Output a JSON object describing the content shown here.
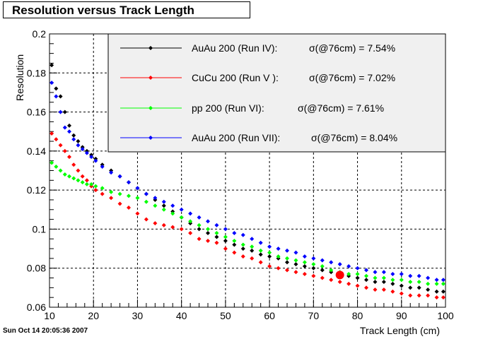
{
  "title": "Resolution versus Track Length",
  "timestamp": "Sun Oct 14 20:05:36 2007",
  "chart_data": {
    "type": "scatter",
    "title": "Resolution versus Track Length",
    "xlabel": "Track Length (cm)",
    "ylabel": "Resolution",
    "xlim": [
      10,
      100
    ],
    "ylim": [
      0.06,
      0.2
    ],
    "xticks": [
      "10",
      "20",
      "30",
      "40",
      "50",
      "60",
      "70",
      "80",
      "90",
      "100"
    ],
    "yticks": [
      "0.06",
      "0.08",
      "0.1",
      "0.12",
      "0.14",
      "0.16",
      "0.18",
      "0.2"
    ],
    "grid": true,
    "legend_position": "top-right",
    "series": [
      {
        "name": "AuAu 200 (Run IV):",
        "sigma_label": "σ(@76cm) =  7.54%",
        "color": "#000000",
        "x": [
          10.5,
          11.5,
          12.5,
          13.5,
          14.5,
          15.5,
          16.5,
          17.5,
          18.5,
          19.5,
          20.5,
          22,
          24,
          26,
          28,
          30,
          32,
          34,
          36,
          38,
          40,
          42,
          44,
          46,
          48,
          50,
          52,
          54,
          56,
          58,
          60,
          62,
          64,
          66,
          68,
          70,
          72,
          74,
          76,
          78,
          80,
          82,
          84,
          86,
          88,
          90,
          92,
          94,
          96,
          98,
          99.5
        ],
        "y": [
          0.184,
          0.172,
          0.168,
          0.16,
          0.153,
          0.148,
          0.145,
          0.142,
          0.14,
          0.138,
          0.136,
          0.133,
          0.13,
          0.127,
          0.124,
          0.121,
          0.118,
          0.115,
          0.112,
          0.109,
          0.106,
          0.103,
          0.1,
          0.098,
          0.096,
          0.094,
          0.092,
          0.09,
          0.089,
          0.087,
          0.086,
          0.085,
          0.083,
          0.082,
          0.081,
          0.08,
          0.079,
          0.078,
          0.077,
          0.076,
          0.075,
          0.074,
          0.073,
          0.073,
          0.072,
          0.071,
          0.07,
          0.07,
          0.069,
          0.068,
          0.068
        ]
      },
      {
        "name": "CuCu 200 (Run V ):",
        "sigma_label": "σ(@76cm) =  7.02%",
        "color": "#ff0000",
        "x": [
          10.5,
          11.5,
          12.5,
          13.5,
          14.5,
          15.5,
          16.5,
          17.5,
          18.5,
          19.5,
          20.5,
          22,
          24,
          26,
          28,
          30,
          32,
          34,
          36,
          38,
          40,
          42,
          44,
          46,
          48,
          50,
          52,
          54,
          56,
          58,
          60,
          62,
          64,
          66,
          68,
          70,
          72,
          74,
          76,
          78,
          80,
          82,
          84,
          86,
          88,
          90,
          92,
          94,
          96,
          98,
          99.5
        ],
        "y": [
          0.149,
          0.146,
          0.143,
          0.14,
          0.137,
          0.133,
          0.13,
          0.127,
          0.125,
          0.122,
          0.12,
          0.118,
          0.116,
          0.113,
          0.111,
          0.108,
          0.105,
          0.103,
          0.102,
          0.101,
          0.1,
          0.098,
          0.095,
          0.094,
          0.093,
          0.09,
          0.088,
          0.086,
          0.085,
          0.083,
          0.081,
          0.08,
          0.079,
          0.078,
          0.077,
          0.076,
          0.075,
          0.074,
          0.073,
          0.072,
          0.071,
          0.07,
          0.069,
          0.069,
          0.068,
          0.067,
          0.066,
          0.066,
          0.066,
          0.065,
          0.065
        ]
      },
      {
        "name": "pp 200   (Run VI):",
        "sigma_label": "σ(@76cm) =  7.61%",
        "color": "#00ff00",
        "x": [
          10.5,
          11.5,
          12.5,
          13.5,
          14.5,
          15.5,
          16.5,
          17.5,
          18.5,
          19.5,
          20.5,
          22,
          24,
          26,
          28,
          30,
          32,
          34,
          36,
          38,
          40,
          42,
          44,
          46,
          48,
          50,
          52,
          54,
          56,
          58,
          60,
          62,
          64,
          66,
          68,
          70,
          72,
          74,
          76,
          78,
          80,
          82,
          84,
          86,
          88,
          90,
          92,
          94,
          96,
          98,
          99.5
        ],
        "y": [
          0.134,
          0.132,
          0.13,
          0.128,
          0.127,
          0.126,
          0.125,
          0.124,
          0.123,
          0.123,
          0.122,
          0.121,
          0.119,
          0.118,
          0.117,
          0.116,
          0.114,
          0.112,
          0.11,
          0.108,
          0.106,
          0.104,
          0.102,
          0.1,
          0.098,
          0.096,
          0.094,
          0.092,
          0.091,
          0.089,
          0.088,
          0.086,
          0.085,
          0.084,
          0.083,
          0.082,
          0.081,
          0.079,
          0.078,
          0.077,
          0.077,
          0.076,
          0.075,
          0.075,
          0.074,
          0.074,
          0.073,
          0.073,
          0.072,
          0.072,
          0.072
        ]
      },
      {
        "name": "AuAu 200 (Run VII):",
        "sigma_label": "σ(@76cm) =  8.04%",
        "color": "#0000ff",
        "x": [
          10.5,
          11.5,
          12.5,
          13.5,
          14.5,
          15.5,
          16.5,
          17.5,
          18.5,
          19.5,
          20.5,
          22,
          24,
          26,
          28,
          30,
          32,
          34,
          36,
          38,
          40,
          42,
          44,
          46,
          48,
          50,
          52,
          54,
          56,
          58,
          60,
          62,
          64,
          66,
          68,
          70,
          72,
          74,
          76,
          78,
          80,
          82,
          84,
          86,
          88,
          90,
          92,
          94,
          96,
          98,
          99.5
        ],
        "y": [
          0.175,
          0.168,
          0.16,
          0.152,
          0.15,
          0.146,
          0.143,
          0.141,
          0.139,
          0.137,
          0.135,
          0.132,
          0.129,
          0.127,
          0.124,
          0.121,
          0.118,
          0.116,
          0.114,
          0.112,
          0.11,
          0.108,
          0.106,
          0.104,
          0.102,
          0.1,
          0.098,
          0.097,
          0.095,
          0.093,
          0.091,
          0.09,
          0.089,
          0.088,
          0.086,
          0.085,
          0.084,
          0.083,
          0.082,
          0.081,
          0.08,
          0.079,
          0.078,
          0.078,
          0.077,
          0.077,
          0.076,
          0.076,
          0.075,
          0.074,
          0.074
        ]
      }
    ],
    "marker": {
      "x": 76,
      "y": 0.0765,
      "color": "#ff0000"
    }
  }
}
